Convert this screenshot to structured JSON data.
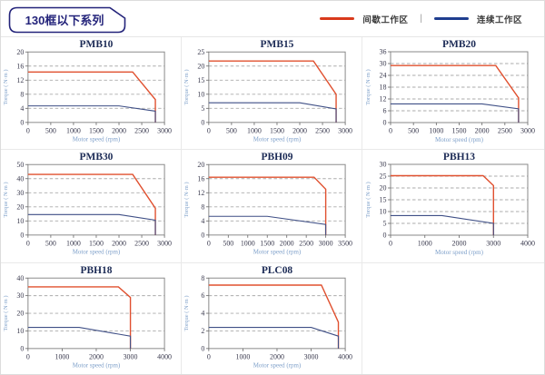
{
  "header": {
    "title": "130框以下系列"
  },
  "legend": {
    "separator": "|",
    "items": [
      {
        "label": "间歇工作区",
        "color": "#d93a1c"
      },
      {
        "label": "连续工作区",
        "color": "#1f3e8f"
      }
    ]
  },
  "colors": {
    "intermittent_line": "#e0502f",
    "continuous_line": "#3f4f86",
    "title_text": "#1b2a55",
    "tick_text": "#3b3b4f",
    "axis_label_text": "#7d9fc9",
    "gridline": "#ababab",
    "frame": "#8a8a8a",
    "badge_border": "#23237a"
  },
  "chart_data": [
    {
      "type": "line",
      "title": "PMB10",
      "xlabel": "Motor speed (rpm)",
      "ylabel": "Torque ( N·m )",
      "xlim": [
        0,
        3000
      ],
      "ylim": [
        0,
        20
      ],
      "x_ticks": [
        0,
        500,
        1000,
        1500,
        2000,
        2500,
        3000
      ],
      "y_ticks": [
        0,
        4,
        8,
        12,
        16,
        20
      ],
      "grid": "horizontal-dashed",
      "legend_position": "none",
      "series": [
        {
          "name": "间歇工作区",
          "points": [
            [
              0,
              14.3
            ],
            [
              2300,
              14.3
            ],
            [
              2800,
              6.5
            ],
            [
              2800,
              0
            ]
          ]
        },
        {
          "name": "连续工作区",
          "points": [
            [
              0,
              4.7
            ],
            [
              2000,
              4.7
            ],
            [
              2800,
              3.2
            ],
            [
              2800,
              0
            ]
          ]
        }
      ]
    },
    {
      "type": "line",
      "title": "PMB15",
      "xlabel": "Motor speed (rpm)",
      "ylabel": "Torque ( N·m )",
      "xlim": [
        0,
        3000
      ],
      "ylim": [
        0,
        25
      ],
      "x_ticks": [
        0,
        500,
        1000,
        1500,
        2000,
        2500,
        3000
      ],
      "y_ticks": [
        0,
        5,
        10,
        15,
        20,
        25
      ],
      "grid": "horizontal-dashed",
      "legend_position": "none",
      "series": [
        {
          "name": "间歇工作区",
          "points": [
            [
              0,
              21.8
            ],
            [
              2300,
              21.8
            ],
            [
              2800,
              10
            ],
            [
              2800,
              0
            ]
          ]
        },
        {
          "name": "连续工作区",
          "points": [
            [
              0,
              7
            ],
            [
              2000,
              7
            ],
            [
              2800,
              4.8
            ],
            [
              2800,
              0
            ]
          ]
        }
      ]
    },
    {
      "type": "line",
      "title": "PMB20",
      "xlabel": "Motor speed (rpm)",
      "ylabel": "Torque ( N·m )",
      "xlim": [
        0,
        3000
      ],
      "ylim": [
        0,
        36
      ],
      "x_ticks": [
        0,
        500,
        1000,
        1500,
        2000,
        2500,
        3000
      ],
      "y_ticks": [
        0,
        6,
        12,
        18,
        24,
        30,
        36
      ],
      "grid": "horizontal-dashed",
      "legend_position": "none",
      "series": [
        {
          "name": "间歇工作区",
          "points": [
            [
              0,
              29
            ],
            [
              2300,
              29
            ],
            [
              2800,
              12.5
            ],
            [
              2800,
              0
            ]
          ]
        },
        {
          "name": "连续工作区",
          "points": [
            [
              0,
              9.5
            ],
            [
              2000,
              9.5
            ],
            [
              2800,
              7
            ],
            [
              2800,
              0
            ]
          ]
        }
      ]
    },
    {
      "type": "line",
      "title": "PMB30",
      "xlabel": "Motor speed (rpm)",
      "ylabel": "Torque ( N·m )",
      "xlim": [
        0,
        3000
      ],
      "ylim": [
        0,
        50
      ],
      "x_ticks": [
        0,
        500,
        1000,
        1500,
        2000,
        2500,
        3000
      ],
      "y_ticks": [
        0,
        10,
        20,
        30,
        40,
        50
      ],
      "grid": "horizontal-dashed",
      "legend_position": "none",
      "series": [
        {
          "name": "间歇工作区",
          "points": [
            [
              0,
              43
            ],
            [
              2300,
              43
            ],
            [
              2800,
              19
            ],
            [
              2800,
              0
            ]
          ]
        },
        {
          "name": "连续工作区",
          "points": [
            [
              0,
              14.5
            ],
            [
              2000,
              14.5
            ],
            [
              2800,
              10.5
            ],
            [
              2800,
              0
            ]
          ]
        }
      ]
    },
    {
      "type": "line",
      "title": "PBH09",
      "xlabel": "Motor speed (rpm)",
      "ylabel": "Torque ( N·m )",
      "xlim": [
        0,
        3500
      ],
      "ylim": [
        0,
        20
      ],
      "x_ticks": [
        0,
        500,
        1000,
        1500,
        2000,
        2500,
        3000,
        3500
      ],
      "y_ticks": [
        0,
        4,
        8,
        12,
        16,
        20
      ],
      "grid": "horizontal-dashed",
      "legend_position": "none",
      "series": [
        {
          "name": "间歇工作区",
          "points": [
            [
              0,
              16.4
            ],
            [
              2700,
              16.4
            ],
            [
              3000,
              13
            ],
            [
              3000,
              0
            ]
          ]
        },
        {
          "name": "连续工作区",
          "points": [
            [
              0,
              5.3
            ],
            [
              1500,
              5.3
            ],
            [
              3000,
              3
            ],
            [
              3000,
              0
            ]
          ]
        }
      ]
    },
    {
      "type": "line",
      "title": "PBH13",
      "xlabel": "Motor speed (rpm)",
      "ylabel": "Torque ( N·m )",
      "xlim": [
        0,
        4000
      ],
      "ylim": [
        0,
        30
      ],
      "x_ticks": [
        0,
        1000,
        2000,
        3000,
        4000
      ],
      "y_ticks": [
        0,
        5,
        10,
        15,
        20,
        25,
        30
      ],
      "grid": "horizontal-dashed",
      "legend_position": "none",
      "series": [
        {
          "name": "间歇工作区",
          "points": [
            [
              0,
              25.2
            ],
            [
              2700,
              25.2
            ],
            [
              3000,
              21
            ],
            [
              3000,
              0
            ]
          ]
        },
        {
          "name": "连续工作区",
          "points": [
            [
              0,
              8.3
            ],
            [
              1500,
              8.3
            ],
            [
              3000,
              5
            ],
            [
              3000,
              0
            ]
          ]
        }
      ]
    },
    {
      "type": "line",
      "title": "PBH18",
      "xlabel": "Motor speed (rpm)",
      "ylabel": "Torque ( N·m )",
      "xlim": [
        0,
        4000
      ],
      "ylim": [
        0,
        40
      ],
      "x_ticks": [
        0,
        1000,
        2000,
        3000,
        4000
      ],
      "y_ticks": [
        0,
        10,
        20,
        30,
        40
      ],
      "grid": "horizontal-dashed",
      "legend_position": "none",
      "series": [
        {
          "name": "间歇工作区",
          "points": [
            [
              0,
              35
            ],
            [
              2650,
              35
            ],
            [
              3000,
              29
            ],
            [
              3000,
              0
            ]
          ]
        },
        {
          "name": "连续工作区",
          "points": [
            [
              0,
              12
            ],
            [
              1500,
              12
            ],
            [
              3000,
              7
            ],
            [
              3000,
              0
            ]
          ]
        }
      ]
    },
    {
      "type": "line",
      "title": "PLC08",
      "xlabel": "Motor speed (rpm)",
      "ylabel": "Torque ( N·m )",
      "xlim": [
        0,
        4000
      ],
      "ylim": [
        0,
        8
      ],
      "x_ticks": [
        0,
        1000,
        2000,
        3000,
        4000
      ],
      "y_ticks": [
        0,
        2,
        4,
        6,
        8
      ],
      "grid": "horizontal-dashed",
      "legend_position": "none",
      "series": [
        {
          "name": "间歇工作区",
          "points": [
            [
              0,
              7.2
            ],
            [
              3300,
              7.2
            ],
            [
              3800,
              3
            ],
            [
              3800,
              0
            ]
          ]
        },
        {
          "name": "连续工作区",
          "points": [
            [
              0,
              2.4
            ],
            [
              3000,
              2.4
            ],
            [
              3800,
              1.4
            ],
            [
              3800,
              0
            ]
          ]
        }
      ]
    }
  ]
}
